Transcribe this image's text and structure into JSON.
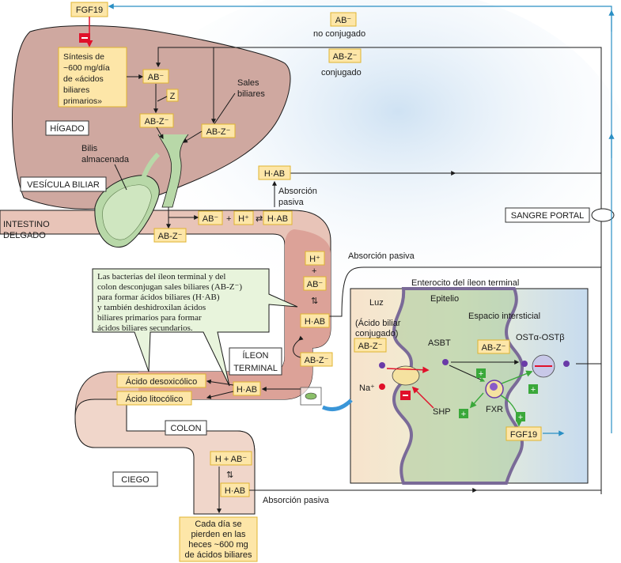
{
  "colors": {
    "liver": "#cfa8a0",
    "intestine": "#e8c4b8",
    "terminal_ileum": "#dca298",
    "label_box": "#fde6a8",
    "note_box": "#e8f4dc",
    "portal_blood": "#2a8fc4",
    "inhibit": "#e0102a",
    "stimulate": "#3aa83a"
  },
  "labels": {
    "fgf19_top": "FGF19",
    "synthesis": [
      "Síntesis de",
      "~600 mg/día",
      "de «ácidos",
      "biliares",
      "primarios»"
    ],
    "ab_minus": "AB⁻",
    "z": "Z",
    "ab_z_minus": "AB-Z⁻",
    "sales_biliares": [
      "Sales",
      "biliares"
    ],
    "higado": "HÍGADO",
    "bilis": [
      "Bilis",
      "almacenada"
    ],
    "vesicula": "VESÍCULA BILIAR",
    "intestino": [
      "INTESTINO",
      "DELGADO"
    ],
    "ab_unconj_box": "AB⁻",
    "no_conjugado": "no conjugado",
    "ab_z_box": "AB-Z⁻",
    "conjugado": "conjugado",
    "hab": "H·AB",
    "absorcion_pasiva_two": [
      "Absorción",
      "pasiva"
    ],
    "eq_ab": "AB⁻",
    "eq_plus": "+",
    "eq_h": "H⁺",
    "eq_hab": "H·AB",
    "ab_z_lower": "AB-Z⁻",
    "sangre_portal": "SANGRE PORTAL",
    "absorcion_pasiva": "Absorción pasiva",
    "h_plus": "H⁺",
    "plus": "+",
    "ab_minus_2": "AB⁻",
    "hab_2": "H·AB",
    "ab_z_2": "AB-Z⁻",
    "note": [
      "Las bacterias del íleon terminal y del",
      "colon desconjugan sales biliares (AB-Z⁻)",
      "para formar ácidos biliares (H·AB)",
      "y también deshidroxilan ácidos",
      "biliares primarios para formar",
      "ácidos biliares secundarios."
    ],
    "ileon_terminal": [
      "ÍLEON",
      "TERMINAL"
    ],
    "hab_3": "H·AB",
    "deoxicolico": "Ácido desoxicólico",
    "litocolico": "Ácido litocólico",
    "colon": "COLON",
    "h_ab_colon": "H + AB⁻",
    "hab_colon": "H·AB",
    "ciego": "CIEGO",
    "absorcion_pasiva_bottom": "Absorción pasiva",
    "loss": [
      "Cada día se",
      "pierden en las",
      "heces ~600 mg",
      "de ácidos biliares"
    ],
    "enterocito": "Enterocito del íleon terminal",
    "luz": "Luz",
    "epitelio": "Epitelio",
    "espacio": "Espacio intersticial",
    "acido_biliar": [
      "(Ácido biliar",
      "conjugado)"
    ],
    "ab_z_ent": "AB-Z⁻",
    "asbt": "ASBT",
    "ab_z_ent2": "AB-Z⁻",
    "ost": "OSTα-OSTβ",
    "na": "Na⁺",
    "shp": "SHP",
    "fxr": "FXR",
    "fgf19_bottom": "FGF19"
  }
}
